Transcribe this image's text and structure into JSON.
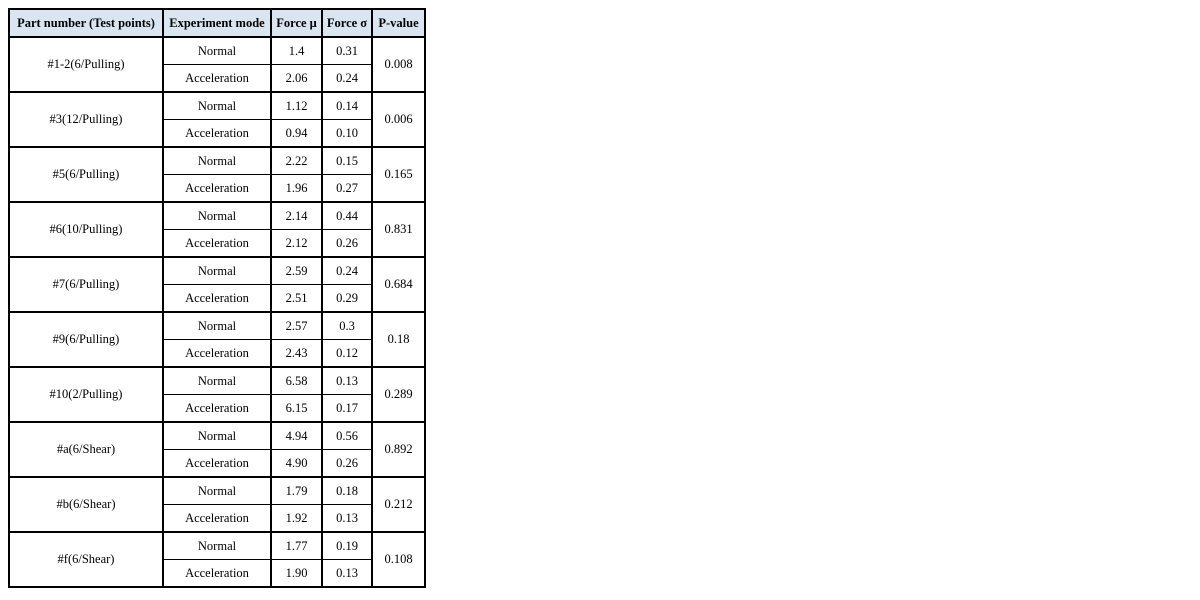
{
  "colors": {
    "header_bg": "#d9e6f2",
    "border": "#000000",
    "page_bg": "#ffffff"
  },
  "table": {
    "headers": [
      "Part number (Test points)",
      "Experiment mode",
      "Force μ",
      "Force σ",
      "P-value"
    ],
    "modes": [
      "Normal",
      "Acceleration"
    ],
    "groups": [
      {
        "part": "#1-2(6/Pulling)",
        "normal": {
          "mu": "1.4",
          "sigma": "0.31"
        },
        "acceleration": {
          "mu": "2.06",
          "sigma": "0.24"
        },
        "p_value": "0.008"
      },
      {
        "part": "#3(12/Pulling)",
        "normal": {
          "mu": "1.12",
          "sigma": "0.14"
        },
        "acceleration": {
          "mu": "0.94",
          "sigma": "0.10"
        },
        "p_value": "0.006"
      },
      {
        "part": "#5(6/Pulling)",
        "normal": {
          "mu": "2.22",
          "sigma": "0.15"
        },
        "acceleration": {
          "mu": "1.96",
          "sigma": "0.27"
        },
        "p_value": "0.165"
      },
      {
        "part": "#6(10/Pulling)",
        "normal": {
          "mu": "2.14",
          "sigma": "0.44"
        },
        "acceleration": {
          "mu": "2.12",
          "sigma": "0.26"
        },
        "p_value": "0.831"
      },
      {
        "part": "#7(6/Pulling)",
        "normal": {
          "mu": "2.59",
          "sigma": "0.24"
        },
        "acceleration": {
          "mu": "2.51",
          "sigma": "0.29"
        },
        "p_value": "0.684"
      },
      {
        "part": "#9(6/Pulling)",
        "normal": {
          "mu": "2.57",
          "sigma": "0.3"
        },
        "acceleration": {
          "mu": "2.43",
          "sigma": "0.12"
        },
        "p_value": "0.18"
      },
      {
        "part": "#10(2/Pulling)",
        "normal": {
          "mu": "6.58",
          "sigma": "0.13"
        },
        "acceleration": {
          "mu": "6.15",
          "sigma": "0.17"
        },
        "p_value": "0.289"
      },
      {
        "part": "#a(6/Shear)",
        "normal": {
          "mu": "4.94",
          "sigma": "0.56"
        },
        "acceleration": {
          "mu": "4.90",
          "sigma": "0.26"
        },
        "p_value": "0.892"
      },
      {
        "part": "#b(6/Shear)",
        "normal": {
          "mu": "1.79",
          "sigma": "0.18"
        },
        "acceleration": {
          "mu": "1.92",
          "sigma": "0.13"
        },
        "p_value": "0.212"
      },
      {
        "part": "#f(6/Shear)",
        "normal": {
          "mu": "1.77",
          "sigma": "0.19"
        },
        "acceleration": {
          "mu": "1.90",
          "sigma": "0.13"
        },
        "p_value": "0.108"
      }
    ]
  }
}
